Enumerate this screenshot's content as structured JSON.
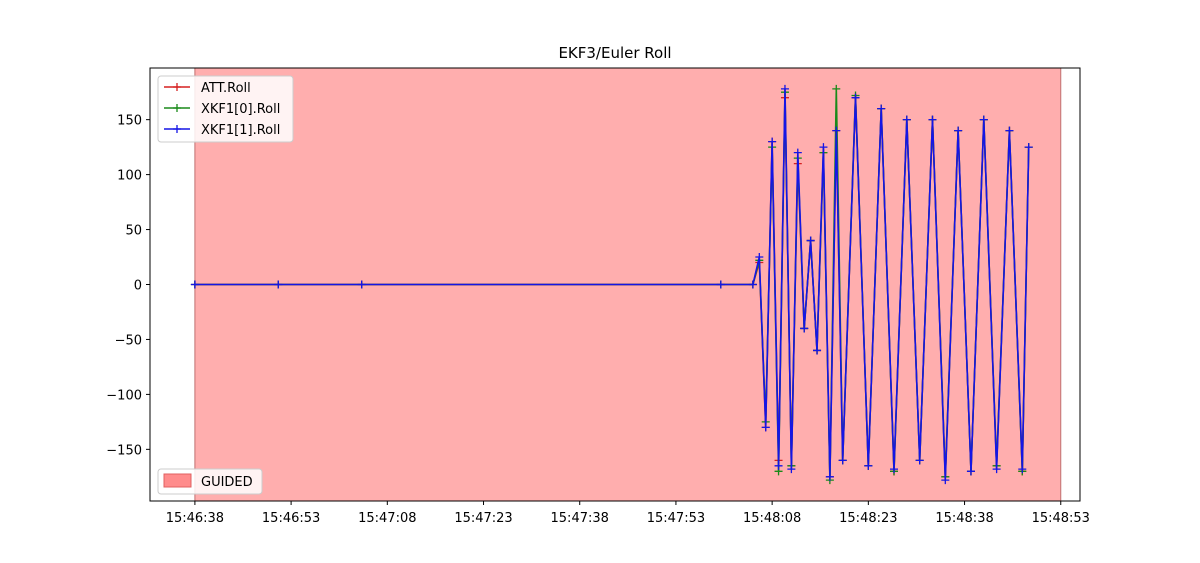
{
  "chart_data": {
    "type": "line",
    "title": "EKF3/Euler Roll",
    "xlabel": "",
    "ylabel": "",
    "x_unit": "time HH:MM:SS",
    "xlim": [
      "15:46:31",
      "15:48:56"
    ],
    "ylim": [
      -197,
      197
    ],
    "x_ticks": [
      "15:46:38",
      "15:46:53",
      "15:47:08",
      "15:47:23",
      "15:47:38",
      "15:47:53",
      "15:48:08",
      "15:48:23",
      "15:48:38",
      "15:48:53"
    ],
    "y_ticks": [
      150,
      100,
      50,
      0,
      -50,
      -100,
      -150
    ],
    "y_tick_labels": [
      "150",
      "100",
      "50",
      "0",
      "−50",
      "−100",
      "−150"
    ],
    "grid": false,
    "legend_position": "top-left",
    "marker": "+",
    "shaded_regions": [
      {
        "label": "GUIDED",
        "x_start": "15:46:38",
        "x_end": "15:48:53",
        "color": "#ff8c8c",
        "opacity": 0.7
      }
    ],
    "shade_legend_position": "bottom-left",
    "series": [
      {
        "name": "ATT.Roll",
        "color": "#d62020",
        "x": [
          "15:46:38",
          "15:46:51",
          "15:47:04",
          "15:48:00",
          "15:48:05",
          "15:48:06",
          "15:48:07",
          "15:48:08",
          "15:48:09",
          "15:48:10",
          "15:48:11",
          "15:48:12",
          "15:48:13",
          "15:48:14",
          "15:48:15",
          "15:48:16",
          "15:48:17",
          "15:48:18",
          "15:48:19",
          "15:48:21",
          "15:48:23",
          "15:48:25",
          "15:48:27",
          "15:48:29",
          "15:48:31",
          "15:48:33",
          "15:48:35",
          "15:48:37",
          "15:48:39",
          "15:48:41",
          "15:48:43",
          "15:48:45",
          "15:48:47",
          "15:48:48"
        ],
        "values": [
          0,
          0,
          0,
          0,
          0,
          20,
          -130,
          130,
          -160,
          170,
          -165,
          110,
          -40,
          40,
          -60,
          120,
          -175,
          140,
          -160,
          170,
          -165,
          160,
          -170,
          150,
          -160,
          150,
          -175,
          140,
          -170,
          150,
          -165,
          140,
          -170,
          125
        ]
      },
      {
        "name": "XKF1[0].Roll",
        "color": "#1a8a1a",
        "x": [
          "15:46:38",
          "15:46:51",
          "15:47:04",
          "15:48:00",
          "15:48:05",
          "15:48:06",
          "15:48:07",
          "15:48:08",
          "15:48:09",
          "15:48:10",
          "15:48:11",
          "15:48:12",
          "15:48:13",
          "15:48:14",
          "15:48:15",
          "15:48:16",
          "15:48:17",
          "15:48:18",
          "15:48:19",
          "15:48:21",
          "15:48:23",
          "15:48:25",
          "15:48:27",
          "15:48:29",
          "15:48:31",
          "15:48:33",
          "15:48:35",
          "15:48:37",
          "15:48:39",
          "15:48:41",
          "15:48:43",
          "15:48:45",
          "15:48:47",
          "15:48:48"
        ],
        "values": [
          0,
          0,
          0,
          0,
          0,
          22,
          -125,
          125,
          -170,
          175,
          -165,
          115,
          -40,
          40,
          -60,
          120,
          -178,
          178,
          -160,
          172,
          -165,
          160,
          -170,
          150,
          -160,
          150,
          -175,
          140,
          -170,
          150,
          -165,
          140,
          -170,
          125
        ]
      },
      {
        "name": "XKF1[1].Roll",
        "color": "#1515e6",
        "x": [
          "15:46:38",
          "15:46:51",
          "15:47:04",
          "15:48:00",
          "15:48:05",
          "15:48:06",
          "15:48:07",
          "15:48:08",
          "15:48:09",
          "15:48:10",
          "15:48:11",
          "15:48:12",
          "15:48:13",
          "15:48:14",
          "15:48:15",
          "15:48:16",
          "15:48:17",
          "15:48:18",
          "15:48:19",
          "15:48:21",
          "15:48:23",
          "15:48:25",
          "15:48:27",
          "15:48:29",
          "15:48:31",
          "15:48:33",
          "15:48:35",
          "15:48:37",
          "15:48:39",
          "15:48:41",
          "15:48:43",
          "15:48:45",
          "15:48:47",
          "15:48:48"
        ],
        "values": [
          0,
          0,
          0,
          0,
          0,
          25,
          -130,
          130,
          -165,
          178,
          -168,
          120,
          -40,
          40,
          -60,
          125,
          -175,
          140,
          -160,
          170,
          -165,
          160,
          -168,
          150,
          -160,
          150,
          -178,
          140,
          -170,
          150,
          -168,
          140,
          -168,
          125
        ]
      }
    ]
  }
}
